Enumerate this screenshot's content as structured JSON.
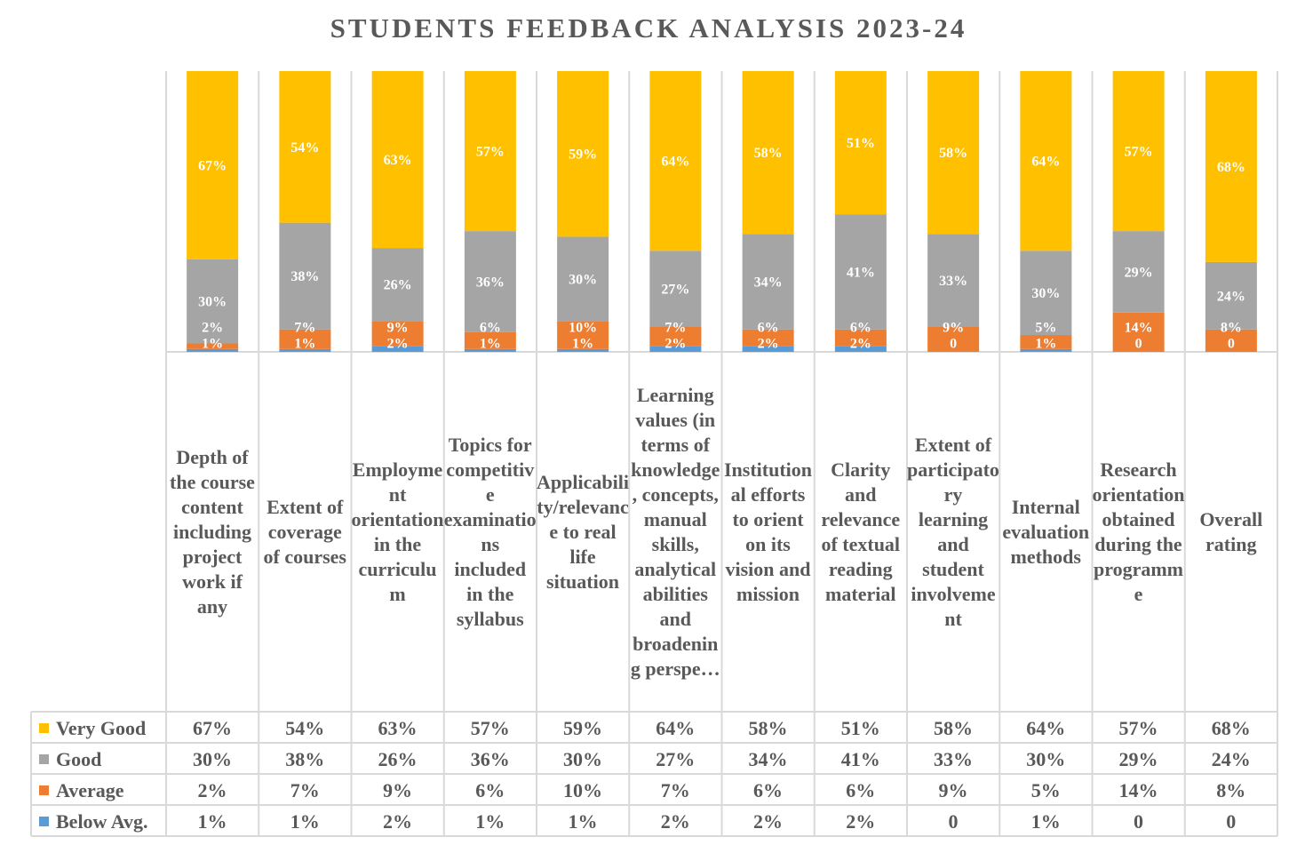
{
  "chart_data": {
    "type": "bar",
    "stacked": true,
    "title": "STUDENTS FEEDBACK ANALYSIS 2023-24",
    "categories": [
      "Depth of the course content including project work if any",
      "Extent of coverage of courses",
      "Employment orientation in the curriculum",
      "Topics for competitive examinations included in the syllabus",
      "Applicability/relevance to real life situation",
      "Learning values (in terms of knowledge, concepts, manual skills, analytical abilities and broadening perspe…",
      "Institutional efforts to orient on its vision and mission",
      "Clarity and relevance of textual reading material",
      "Extent of participatory learning and student involvement",
      "Internal evaluation methods",
      "Research orientation obtained during the programme",
      "Overall rating"
    ],
    "series": [
      {
        "name": "Below Avg.",
        "color": "#5B9BD5",
        "values": [
          1,
          1,
          2,
          1,
          1,
          2,
          2,
          2,
          0,
          1,
          0,
          0
        ],
        "labels": [
          "1%",
          "1%",
          "2%",
          "1%",
          "1%",
          "2%",
          "2%",
          "2%",
          "0",
          "1%",
          "0",
          "0"
        ]
      },
      {
        "name": "Average",
        "color": "#ED7D31",
        "values": [
          2,
          7,
          9,
          6,
          10,
          7,
          6,
          6,
          9,
          5,
          14,
          8
        ],
        "labels": [
          "2%",
          "7%",
          "9%",
          "6%",
          "10%",
          "7%",
          "6%",
          "6%",
          "9%",
          "5%",
          "14%",
          "8%"
        ]
      },
      {
        "name": "Good",
        "color": "#A5A5A5",
        "values": [
          30,
          38,
          26,
          36,
          30,
          27,
          34,
          41,
          33,
          30,
          29,
          24
        ],
        "labels": [
          "30%",
          "38%",
          "26%",
          "36%",
          "30%",
          "27%",
          "34%",
          "41%",
          "33%",
          "30%",
          "29%",
          "24%"
        ]
      },
      {
        "name": "Very Good",
        "color": "#FFC000",
        "values": [
          67,
          54,
          63,
          57,
          59,
          64,
          58,
          51,
          58,
          64,
          57,
          68
        ],
        "labels": [
          "67%",
          "54%",
          "63%",
          "57%",
          "59%",
          "64%",
          "58%",
          "51%",
          "58%",
          "64%",
          "57%",
          "68%"
        ]
      }
    ],
    "table_row_order": [
      "Very Good",
      "Good",
      "Average",
      "Below Avg."
    ],
    "ylim": [
      0,
      100
    ],
    "data_table": true,
    "legend": "data-table-left",
    "grid": "vertical-category-lines"
  }
}
